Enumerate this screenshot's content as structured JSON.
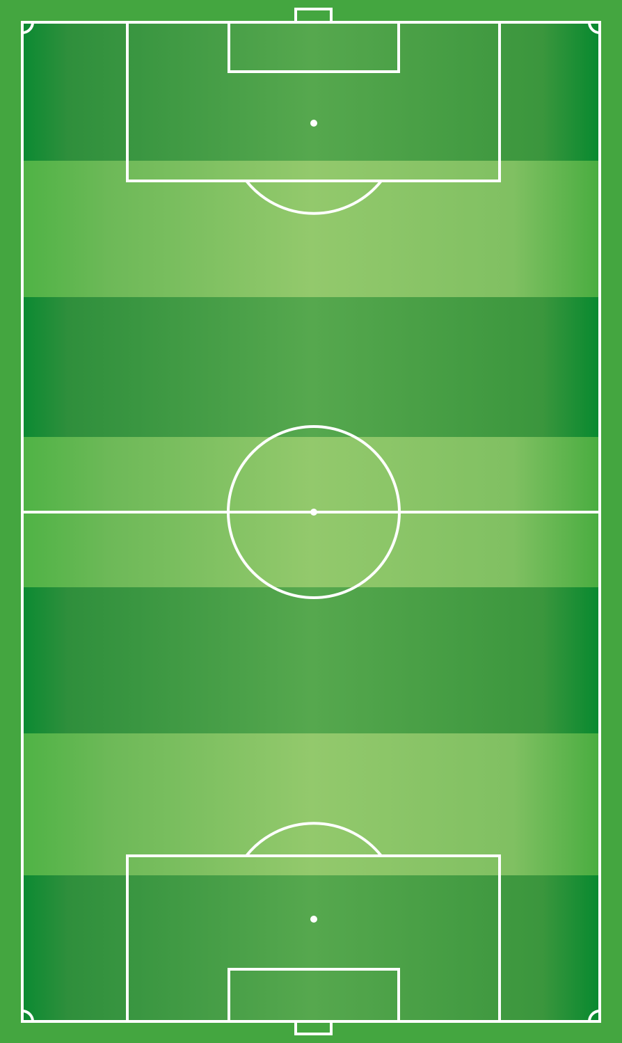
{
  "pitch": {
    "stripes": [
      "dark",
      "light",
      "dark",
      "light",
      "dark",
      "light",
      "dark"
    ],
    "colors": {
      "border": "#44a640",
      "dark_edge": "#0b8a32",
      "dark_mid": "#56a84e",
      "light_edge": "#4fb345",
      "light_mid": "#93c96c",
      "lines": "#ffffff"
    }
  }
}
